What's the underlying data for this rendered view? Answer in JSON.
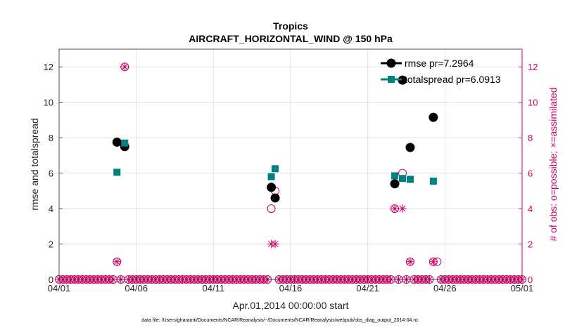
{
  "chart_data": {
    "type": "scatter",
    "title": "Tropics",
    "subtitle": "AIRCRAFT_HORIZONTAL_WIND @ 150 hPa",
    "xlabel": "Apr.01,2014 00:00:00 start",
    "ylabel": "rmse and totalspread",
    "y2label": "# of obs: o=possible; ×=assimilated",
    "footnote": "data file: /Users/gharamti/Documents/NCAR/Reanalysis/~/Documents/NCAR/Reanalysis/webpub/obs_diag_output_2014-04.nc",
    "xlim": [
      0,
      30
    ],
    "ylim": [
      0,
      13
    ],
    "y2lim": [
      0,
      13
    ],
    "x_ticks": [
      0,
      5,
      10,
      15,
      20,
      25,
      30
    ],
    "x_tick_labels": [
      "04/01",
      "04/06",
      "04/11",
      "04/16",
      "04/21",
      "04/26",
      "05/01"
    ],
    "y_ticks": [
      0,
      2,
      4,
      6,
      8,
      10,
      12
    ],
    "y_tick_labels": [
      "0",
      "2",
      "4",
      "6",
      "8",
      "10",
      "12"
    ],
    "y2_ticks": [
      0,
      2,
      4,
      6,
      8,
      10,
      12
    ],
    "y2_tick_labels": [
      "0",
      "2",
      "4",
      "6",
      "8",
      "10",
      "12"
    ],
    "grid": true,
    "legend_position": "top-right",
    "colors": {
      "rmse": "#000000",
      "totalspread": "#008080",
      "obs": "#cc0066",
      "axis": "#262626",
      "grid": "#dcdcdc"
    },
    "series": [
      {
        "name": "rmse",
        "legend_label": "rmse pr=7.2964",
        "marker": "circle",
        "points": [
          [
            3.75,
            7.75
          ],
          [
            4.25,
            7.5
          ],
          [
            13.75,
            5.2
          ],
          [
            14.0,
            4.6
          ],
          [
            21.75,
            5.4
          ],
          [
            22.25,
            11.25
          ],
          [
            22.75,
            7.45
          ],
          [
            24.25,
            9.15
          ]
        ]
      },
      {
        "name": "totalspread",
        "legend_label": "totalspread pr=6.0913",
        "marker": "square",
        "points": [
          [
            3.75,
            6.05
          ],
          [
            4.25,
            7.7
          ],
          [
            13.75,
            5.8
          ],
          [
            14.0,
            6.25
          ],
          [
            21.75,
            5.85
          ],
          [
            22.25,
            5.7
          ],
          [
            22.75,
            5.65
          ],
          [
            24.25,
            5.55
          ]
        ]
      }
    ],
    "obs_possible": [
      [
        3.75,
        1
      ],
      [
        4.25,
        12
      ],
      [
        13.75,
        4
      ],
      [
        14.0,
        5
      ],
      [
        21.75,
        4
      ],
      [
        22.25,
        6
      ],
      [
        22.75,
        1
      ],
      [
        24.25,
        1
      ],
      [
        24.5,
        1
      ]
    ],
    "obs_assimilated": [
      [
        3.75,
        1
      ],
      [
        4.25,
        12
      ],
      [
        13.75,
        2
      ],
      [
        14.0,
        2
      ],
      [
        21.75,
        4
      ],
      [
        22.25,
        4
      ],
      [
        22.75,
        1
      ],
      [
        24.25,
        1
      ]
    ],
    "obs_zero_day_start": 0,
    "obs_zero_day_end": 30,
    "obs_zero_step": 0.25
  }
}
